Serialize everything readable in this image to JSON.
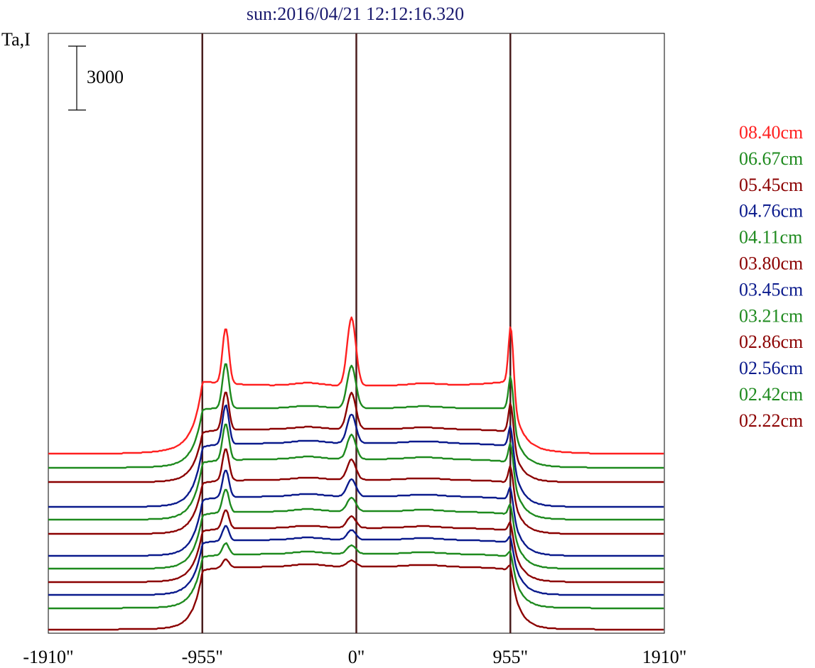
{
  "chart_data": {
    "type": "line",
    "title": "sun:2016/04/21 12:12:16.320",
    "ylabel": "Ta,I",
    "xlabel": "",
    "xlim": [
      -1910,
      1910
    ],
    "x_tick_values": [
      -1910,
      -955,
      0,
      955,
      1910
    ],
    "x_tick_labels": [
      "-1910\"",
      "-955\"",
      "0\"",
      "955\"",
      "1910\""
    ],
    "vertical_markers": [
      -955,
      0,
      955
    ],
    "scale_bar": {
      "label": "3000",
      "value": 3000
    },
    "grid": false,
    "legend_position": "right",
    "legend": [
      {
        "label": "08.40cm",
        "color": "#ff2020"
      },
      {
        "label": "06.67cm",
        "color": "#1e8a1e"
      },
      {
        "label": "05.45cm",
        "color": "#8b0000"
      },
      {
        "label": "04.76cm",
        "color": "#0a1a8c"
      },
      {
        "label": "04.11cm",
        "color": "#1e8a1e"
      },
      {
        "label": "03.80cm",
        "color": "#8b0000"
      },
      {
        "label": "03.45cm",
        "color": "#0a1a8c"
      },
      {
        "label": "03.21cm",
        "color": "#1e8a1e"
      },
      {
        "label": "02.86cm",
        "color": "#8b0000"
      },
      {
        "label": "02.56cm",
        "color": "#0a1a8c"
      },
      {
        "label": "02.42cm",
        "color": "#1e8a1e"
      },
      {
        "label": "02.22cm",
        "color": "#8b0000"
      }
    ],
    "series": [
      {
        "color": "#ff2020",
        "offset": 7350,
        "disk": 3200,
        "edge_gain": 1.15,
        "lpeak": 2600,
        "cpeak": 3200,
        "rpeak": 2800
      },
      {
        "color": "#1e8a1e",
        "offset": 6700,
        "disk": 2800,
        "edge_gain": 1.05,
        "lpeak": 2100,
        "cpeak": 2000,
        "rpeak": 1700
      },
      {
        "color": "#8b0000",
        "offset": 6020,
        "disk": 2500,
        "edge_gain": 1.0,
        "lpeak": 1800,
        "cpeak": 1700,
        "rpeak": 1500
      },
      {
        "color": "#0a1a8c",
        "offset": 4860,
        "disk": 3000,
        "edge_gain": 1.0,
        "lpeak": 1850,
        "cpeak": 1350,
        "rpeak": 1100
      },
      {
        "color": "#1e8a1e",
        "offset": 4260,
        "disk": 2850,
        "edge_gain": 1.0,
        "lpeak": 1700,
        "cpeak": 1150,
        "rpeak": 1050
      },
      {
        "color": "#8b0000",
        "offset": 3590,
        "disk": 2550,
        "edge_gain": 1.0,
        "lpeak": 1500,
        "cpeak": 950,
        "rpeak": 900
      },
      {
        "color": "#0a1a8c",
        "offset": 2560,
        "disk": 2800,
        "edge_gain": 1.0,
        "lpeak": 1300,
        "cpeak": 800,
        "rpeak": 700
      },
      {
        "color": "#1e8a1e",
        "offset": 1950,
        "disk": 2700,
        "edge_gain": 1.0,
        "lpeak": 1100,
        "cpeak": 650,
        "rpeak": 600
      },
      {
        "color": "#8b0000",
        "offset": 1330,
        "disk": 2550,
        "edge_gain": 1.0,
        "lpeak": 900,
        "cpeak": 550,
        "rpeak": 500
      },
      {
        "color": "#0a1a8c",
        "offset": 720,
        "disk": 2600,
        "edge_gain": 1.0,
        "lpeak": 700,
        "cpeak": 450,
        "rpeak": 400
      },
      {
        "color": "#1e8a1e",
        "offset": 110,
        "disk": 2550,
        "edge_gain": 1.0,
        "lpeak": 550,
        "cpeak": 400,
        "rpeak": 350
      },
      {
        "color": "#8b0000",
        "offset": -890,
        "disk": 2950,
        "edge_gain": 1.0,
        "lpeak": 400,
        "cpeak": 300,
        "rpeak": 300
      }
    ]
  }
}
